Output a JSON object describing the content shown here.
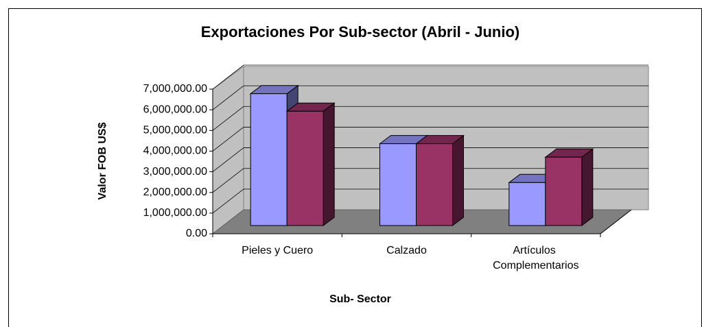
{
  "chart_data": {
    "type": "bar3d",
    "title": "Exportaciones Por Sub-sector (Abril - Junio)",
    "xlabel": "Sub- Sector",
    "ylabel": "Valor FOB US$",
    "categories": [
      "Pieles y Cuero",
      "Calzado",
      "Artículos Complementarios"
    ],
    "series": [
      {
        "color": "#9999ff",
        "values": [
          6380000,
          3960000,
          2080000
        ]
      },
      {
        "color": "#993366",
        "values": [
          5530000,
          3960000,
          3310000
        ]
      }
    ],
    "ylim": [
      0,
      7000000
    ],
    "yticks": [
      {
        "value": 0,
        "label": "0.00"
      },
      {
        "value": 1000000,
        "label": "1,000,000.00"
      },
      {
        "value": 2000000,
        "label": "2,000,000.00"
      },
      {
        "value": 3000000,
        "label": "3,000,000.00"
      },
      {
        "value": 4000000,
        "label": "4,000,000.00"
      },
      {
        "value": 5000000,
        "label": "5,000,000.00"
      },
      {
        "value": 6000000,
        "label": "6,000,000.00"
      },
      {
        "value": 7000000,
        "label": "7,000,000.00"
      }
    ],
    "grid": true
  }
}
